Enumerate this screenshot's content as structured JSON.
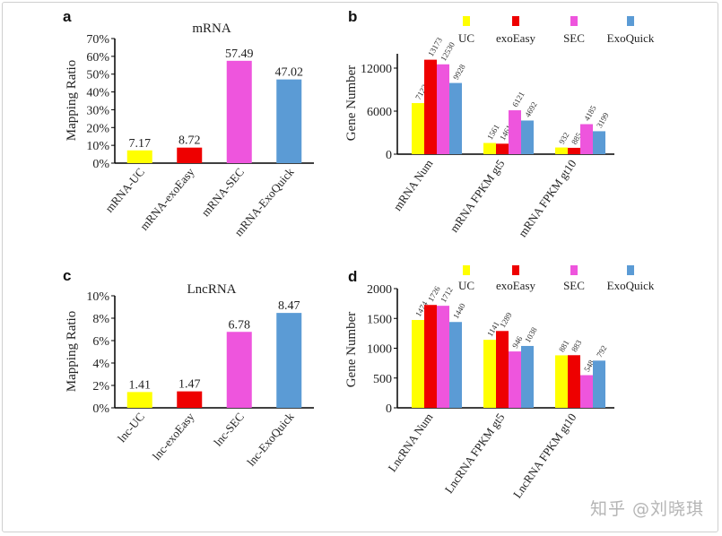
{
  "watermark": "知乎 @刘晓琪",
  "colors": {
    "UC": "#ffff00",
    "exoEasy": "#ee0000",
    "SEC": "#ee55dd",
    "ExoQuick": "#5b9bd5"
  },
  "chart_data": [
    {
      "panel": "a",
      "type": "bar",
      "title": "mRNA",
      "ylabel": "Mapping Ratio",
      "xlabel": "",
      "ylim": [
        0,
        70
      ],
      "yticks": [
        "0%",
        "10%",
        "20%",
        "30%",
        "40%",
        "50%",
        "60%",
        "70%"
      ],
      "categories": [
        "mRNA-UC",
        "mRNA-exoEasy",
        "mRNA-SEC",
        "mRNA-ExoQuick"
      ],
      "values": [
        7.17,
        8.72,
        57.49,
        47.02
      ],
      "labels": [
        "7.17",
        "8.72",
        "57.49",
        "47.02"
      ],
      "bar_colors": [
        "#ffff00",
        "#ee0000",
        "#ee55dd",
        "#5b9bd5"
      ],
      "grid": false
    },
    {
      "panel": "b",
      "type": "bar",
      "title": "",
      "ylabel": "Gene Number",
      "xlabel": "",
      "ylim": [
        0,
        14000
      ],
      "yticks": [
        "0",
        "6000",
        "12000"
      ],
      "ytick_values": [
        0,
        6000,
        12000
      ],
      "categories": [
        "mRNA Num",
        "mRNA FPKM gt5",
        "mRNA FPKM gt10"
      ],
      "series": [
        {
          "name": "UC",
          "values": [
            7123,
            1561,
            932
          ]
        },
        {
          "name": "exoEasy",
          "values": [
            13173,
            1461,
            885
          ]
        },
        {
          "name": "SEC",
          "values": [
            12530,
            6121,
            4185
          ]
        },
        {
          "name": "ExoQuick",
          "values": [
            9928,
            4692,
            3199
          ]
        }
      ],
      "legend": "top",
      "grid": false
    },
    {
      "panel": "c",
      "type": "bar",
      "title": "LncRNA",
      "ylabel": "Mapping Ratio",
      "xlabel": "",
      "ylim": [
        0,
        10
      ],
      "yticks": [
        "0%",
        "2%",
        "4%",
        "6%",
        "8%",
        "10%"
      ],
      "categories": [
        "lnc-UC",
        "lnc-exoEasy",
        "lnc-SEC",
        "lnc-ExoQuick"
      ],
      "values": [
        1.41,
        1.47,
        6.78,
        8.47
      ],
      "labels": [
        "1.41",
        "1.47",
        "6.78",
        "8.47"
      ],
      "bar_colors": [
        "#ffff00",
        "#ee0000",
        "#ee55dd",
        "#5b9bd5"
      ],
      "grid": false
    },
    {
      "panel": "d",
      "type": "bar",
      "title": "",
      "ylabel": "Gene Number",
      "xlabel": "",
      "ylim": [
        0,
        2000
      ],
      "yticks": [
        "0",
        "500",
        "1000",
        "1500",
        "2000"
      ],
      "ytick_values": [
        0,
        500,
        1000,
        1500,
        2000
      ],
      "categories": [
        "LncRNA Num",
        "LncRNA FPKM gt5",
        "LncRNA FPKM gt10"
      ],
      "series": [
        {
          "name": "UC",
          "values": [
            1474,
            1141,
            881
          ]
        },
        {
          "name": "exoEasy",
          "values": [
            1726,
            1289,
            883
          ]
        },
        {
          "name": "SEC",
          "values": [
            1712,
            946,
            548
          ]
        },
        {
          "name": "ExoQuick",
          "values": [
            1440,
            1038,
            792
          ]
        }
      ],
      "legend": "top",
      "grid": false
    }
  ]
}
